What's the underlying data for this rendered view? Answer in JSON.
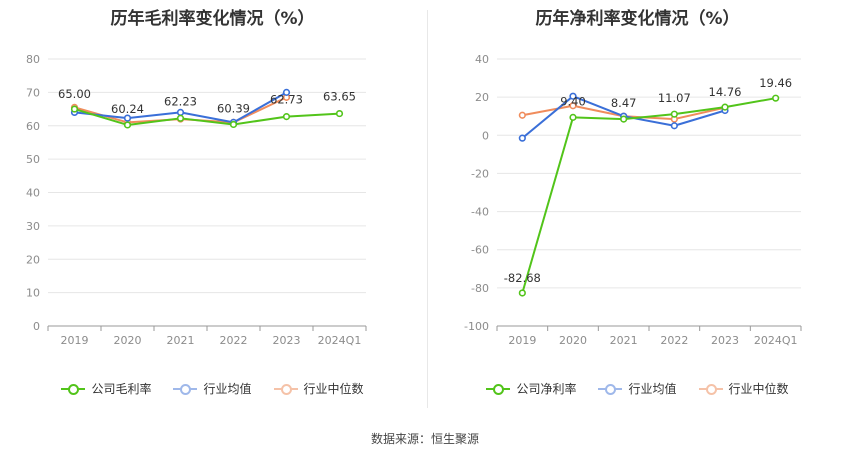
{
  "chart_data": [
    {
      "type": "line",
      "title": "历年毛利率变化情况（%）",
      "categories": [
        "2019",
        "2020",
        "2021",
        "2022",
        "2023",
        "2024Q1"
      ],
      "y_ticks": [
        "0",
        "10",
        "20",
        "30",
        "40",
        "50",
        "60",
        "70",
        "80"
      ],
      "ylim": [
        0,
        80
      ],
      "series": [
        {
          "name": "公司毛利率",
          "color": "#52c41a",
          "values": [
            65.0,
            60.24,
            62.23,
            60.39,
            62.73,
            63.65
          ],
          "labels": [
            "65.00",
            "60.24",
            "62.23",
            "60.39",
            "62.73",
            "63.65"
          ]
        },
        {
          "name": "行业均值",
          "color": "#3a6fd8",
          "values": [
            64.0,
            62.3,
            64.0,
            61.0,
            70.0,
            null
          ]
        },
        {
          "name": "行业中位数",
          "color": "#f08c5c",
          "values": [
            65.5,
            61.0,
            62.0,
            61.0,
            68.5,
            null
          ]
        }
      ]
    },
    {
      "type": "line",
      "title": "历年净利率变化情况（%）",
      "categories": [
        "2019",
        "2020",
        "2021",
        "2022",
        "2023",
        "2024Q1"
      ],
      "y_ticks": [
        "-100",
        "-80",
        "-60",
        "-40",
        "-20",
        "0",
        "20",
        "40"
      ],
      "ylim": [
        -100,
        40
      ],
      "series": [
        {
          "name": "公司净利率",
          "color": "#52c41a",
          "values": [
            -82.68,
            9.4,
            8.47,
            11.07,
            14.76,
            19.46
          ],
          "labels": [
            "-82.68",
            "9.40",
            "8.47",
            "11.07",
            "14.76",
            "19.46"
          ]
        },
        {
          "name": "行业均值",
          "color": "#3a6fd8",
          "values": [
            -1.5,
            20.5,
            10.0,
            5.0,
            13.0,
            null
          ]
        },
        {
          "name": "行业中位数",
          "color": "#f08c5c",
          "values": [
            10.5,
            15.5,
            10.0,
            8.5,
            14.5,
            null
          ]
        }
      ]
    }
  ],
  "left": {
    "title": "历年毛利率变化情况（%）",
    "legend": [
      "公司毛利率",
      "行业均值",
      "行业中位数"
    ]
  },
  "right": {
    "title": "历年净利率变化情况（%）",
    "legend": [
      "公司净利率",
      "行业均值",
      "行业中位数"
    ]
  },
  "source": "数据来源：恒生聚源"
}
